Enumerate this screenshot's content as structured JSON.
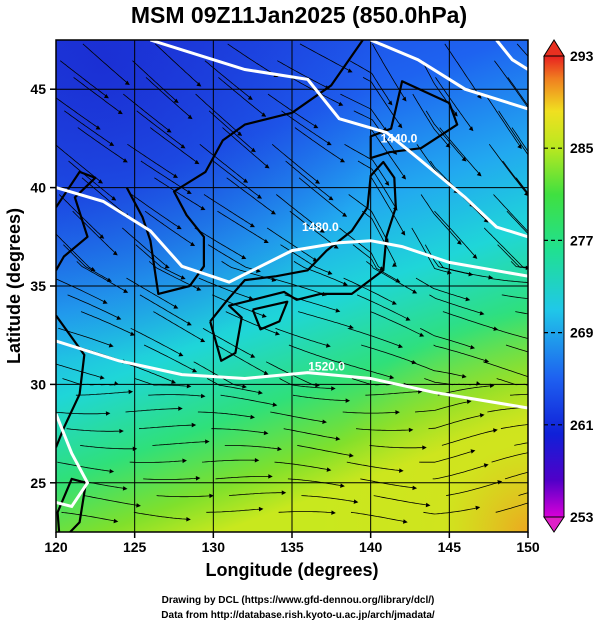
{
  "title": "MSM 09Z11Jan2025 (850.0hPa)",
  "x_axis": {
    "label": "Longitude (degrees)",
    "ticks": [
      {
        "value": 120,
        "label": "120"
      },
      {
        "value": 125,
        "label": "125"
      },
      {
        "value": 130,
        "label": "130"
      },
      {
        "value": 135,
        "label": "135"
      },
      {
        "value": 140,
        "label": "140"
      },
      {
        "value": 145,
        "label": "145"
      },
      {
        "value": 150,
        "label": "150"
      }
    ],
    "range": [
      120,
      150
    ]
  },
  "y_axis": {
    "label": "Latitude  (degrees)",
    "ticks": [
      {
        "value": 25,
        "label": "25"
      },
      {
        "value": 30,
        "label": "30"
      },
      {
        "value": 35,
        "label": "35"
      },
      {
        "value": 40,
        "label": "40"
      },
      {
        "value": 45,
        "label": "45"
      }
    ],
    "range": [
      22.5,
      47.5
    ]
  },
  "colorbar": {
    "ticks": [
      {
        "value": 253,
        "label": "253"
      },
      {
        "value": 261,
        "label": "261"
      },
      {
        "value": 269,
        "label": "269"
      },
      {
        "value": 277,
        "label": "277"
      },
      {
        "value": 285,
        "label": "285"
      },
      {
        "value": 293,
        "label": "293"
      }
    ],
    "range": [
      253,
      293
    ]
  },
  "contours": [
    {
      "label": "1440.0",
      "lon": 141.8,
      "lat": 42.3
    },
    {
      "label": "1480.0",
      "lon": 136.8,
      "lat": 37.8
    },
    {
      "label": "1520.0",
      "lon": 137.2,
      "lat": 30.7
    }
  ],
  "credits": [
    "Drawing by DCL (https://www.gfd-dennou.org/library/dcl/)",
    "Data from http://database.rish.kyoto-u.ac.jp/arch/jmadata/"
  ]
}
